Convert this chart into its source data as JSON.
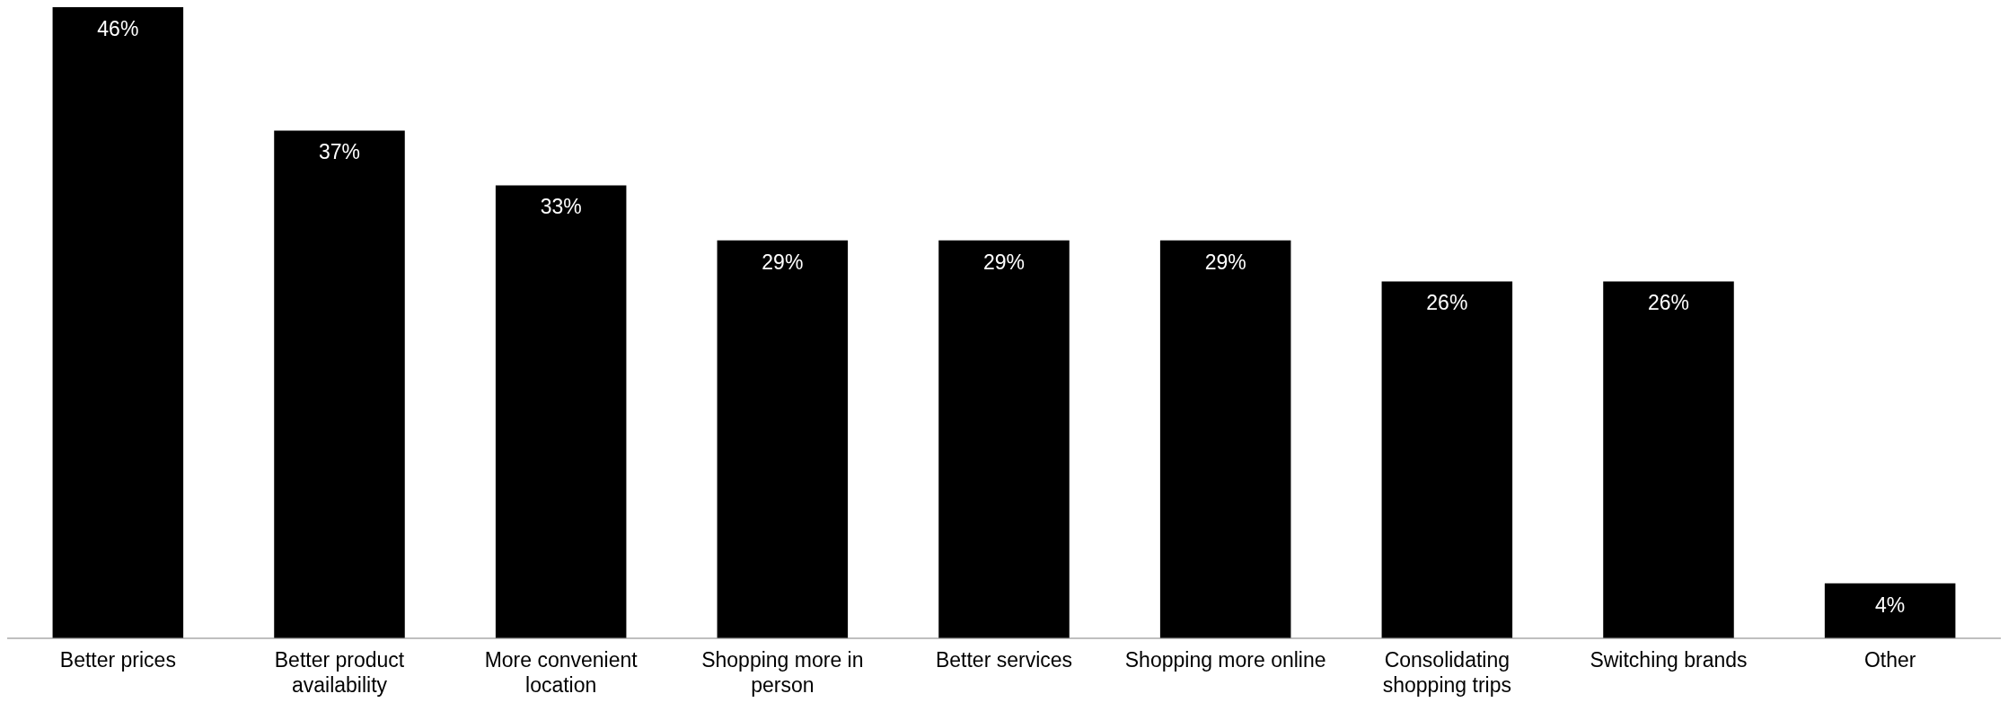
{
  "chart_data": {
    "type": "bar",
    "categories": [
      "Better prices",
      "Better product availability",
      "More convenient location",
      "Shopping more in person",
      "Better services",
      "Shopping more online",
      "Consolidating shopping trips",
      "Switching brands",
      "Other"
    ],
    "values": [
      46,
      37,
      33,
      29,
      29,
      29,
      26,
      26,
      4
    ],
    "value_labels": [
      "46%",
      "37%",
      "33%",
      "29%",
      "29%",
      "29%",
      "26%",
      "26%",
      "4%"
    ],
    "color": "#000000",
    "grid": false,
    "legend": false
  }
}
